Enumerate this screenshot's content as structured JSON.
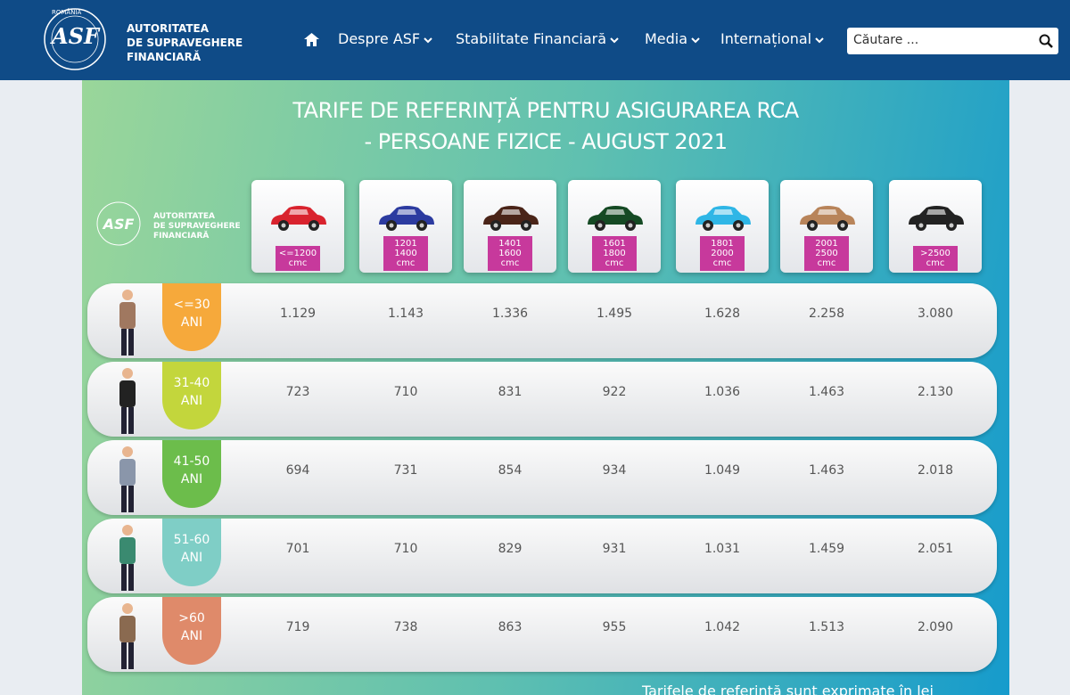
{
  "header": {
    "logo_top": "ROMÂNIA",
    "logo_mark": "ASF",
    "org_lines": [
      "AUTORITATEA",
      "DE SUPRAVEGHERE",
      "FINANCIARĂ"
    ],
    "nav": [
      "Despre ASF",
      "Stabilitate Financiară",
      "Media",
      "Internațional"
    ],
    "search_placeholder": "Căutare ..."
  },
  "infographic": {
    "title_lines": [
      "TARIFE DE REFERINȚĂ PENTRU ASIGURAREA RCA",
      "- PERSOANE FIZICE - AUGUST 2021"
    ],
    "logo_lines": [
      "AUTORITATEA",
      "DE SUPRAVEGHERE",
      "FINANCIARĂ"
    ],
    "columns": [
      [
        "<=1200",
        "cmc"
      ],
      [
        "1201",
        "1400",
        "cmc"
      ],
      [
        "1401",
        "1600",
        "cmc"
      ],
      [
        "1601",
        "1800",
        "cmc"
      ],
      [
        "1801",
        "2000",
        "cmc"
      ],
      [
        "2001",
        "2500",
        "cmc"
      ],
      [
        ">2500",
        "cmc"
      ]
    ],
    "rows": [
      {
        "age": [
          "<=30",
          "ANI"
        ],
        "values": [
          "1.129",
          "1.143",
          "1.336",
          "1.495",
          "1.628",
          "2.258",
          "3.080"
        ]
      },
      {
        "age": [
          "31-40",
          "ANI"
        ],
        "values": [
          "723",
          "710",
          "831",
          "922",
          "1.036",
          "1.463",
          "2.130"
        ]
      },
      {
        "age": [
          "41-50",
          "ANI"
        ],
        "values": [
          "694",
          "731",
          "854",
          "934",
          "1.049",
          "1.463",
          "2.018"
        ]
      },
      {
        "age": [
          "51-60",
          "ANI"
        ],
        "values": [
          "701",
          "710",
          "829",
          "931",
          "1.031",
          "1.459",
          "2.051"
        ]
      },
      {
        "age": [
          ">60",
          "ANI"
        ],
        "values": [
          "719",
          "738",
          "863",
          "955",
          "1.042",
          "1.513",
          "2.090"
        ]
      }
    ],
    "footnote": "Tarifele de referință sunt exprimate în lei"
  }
}
